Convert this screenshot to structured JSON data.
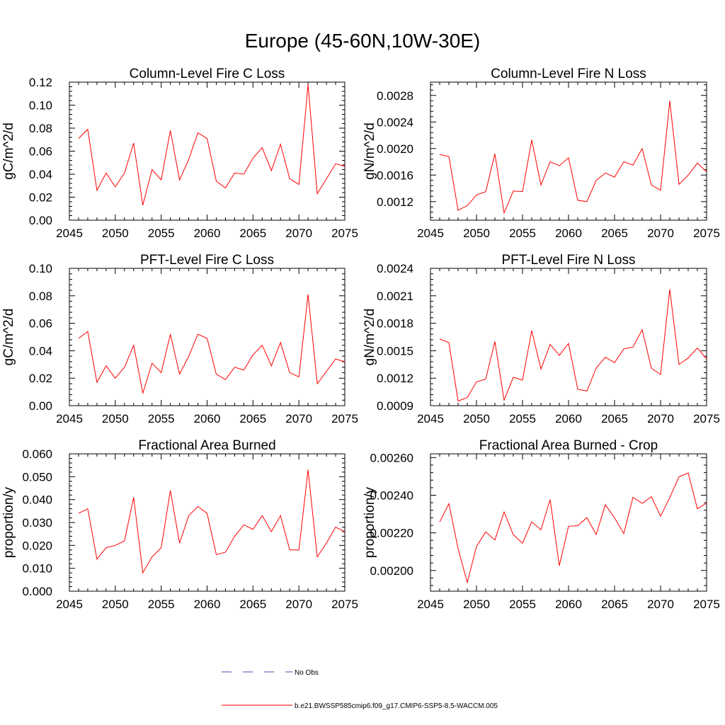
{
  "main_title": "Europe (45-60N,10W-30E)",
  "legend": {
    "obs_label": "No Obs",
    "model_label": "b.e21.BWSSP585cmip6.f09_g17.CMIP6-SSP5-8.5-WACCM.005",
    "obs_color": "#4a4ab0",
    "model_color": "#ff0000"
  },
  "chart_data": [
    {
      "type": "line",
      "title": "Column-Level Fire C Loss",
      "ylabel": "gC/m^2/d",
      "xlim": [
        2045,
        2075
      ],
      "ylim": [
        0,
        0.12
      ],
      "xticks": [
        "2045",
        "2050",
        "2055",
        "2060",
        "2065",
        "2070",
        "2075"
      ],
      "yticks": [
        "0.00",
        "0.02",
        "0.04",
        "0.06",
        "0.08",
        "0.10",
        "0.12"
      ],
      "series": [
        {
          "name": "b.e21.BWSSP585cmip6.f09_g17.CMIP6-SSP5-8.5-WACCM.005",
          "x": [
            2046,
            2047,
            2048,
            2049,
            2050,
            2051,
            2052,
            2053,
            2054,
            2055,
            2056,
            2057,
            2058,
            2059,
            2060,
            2061,
            2062,
            2063,
            2064,
            2065,
            2066,
            2067,
            2068,
            2069,
            2070,
            2071,
            2072,
            2073,
            2074,
            2075
          ],
          "values": [
            0.071,
            0.079,
            0.026,
            0.041,
            0.029,
            0.041,
            0.067,
            0.013,
            0.044,
            0.035,
            0.078,
            0.035,
            0.053,
            0.076,
            0.071,
            0.034,
            0.028,
            0.041,
            0.04,
            0.054,
            0.063,
            0.043,
            0.066,
            0.036,
            0.031,
            0.118,
            0.023,
            0.036,
            0.049,
            0.047
          ]
        }
      ]
    },
    {
      "type": "line",
      "title": "Column-Level Fire N Loss",
      "ylabel": "gN/m^2/d",
      "xlim": [
        2045,
        2075
      ],
      "ylim": [
        0.00092,
        0.003
      ],
      "xticks": [
        "2045",
        "2050",
        "2055",
        "2060",
        "2065",
        "2070",
        "2075"
      ],
      "yticks": [
        "0.0012",
        "0.0016",
        "0.0020",
        "0.0024",
        "0.0028"
      ],
      "series": [
        {
          "name": "b.e21.BWSSP585cmip6.f09_g17.CMIP6-SSP5-8.5-WACCM.005",
          "x": [
            2046,
            2047,
            2048,
            2049,
            2050,
            2051,
            2052,
            2053,
            2054,
            2055,
            2056,
            2057,
            2058,
            2059,
            2060,
            2061,
            2062,
            2063,
            2064,
            2065,
            2066,
            2067,
            2068,
            2069,
            2070,
            2071,
            2072,
            2073,
            2074,
            2075
          ],
          "values": [
            0.00191,
            0.00188,
            0.00107,
            0.00114,
            0.0013,
            0.00135,
            0.00192,
            0.00103,
            0.00136,
            0.00135,
            0.00213,
            0.00145,
            0.0018,
            0.00174,
            0.00186,
            0.00122,
            0.0012,
            0.00152,
            0.00163,
            0.00157,
            0.0018,
            0.00175,
            0.002,
            0.00145,
            0.00137,
            0.00272,
            0.00146,
            0.0016,
            0.00178,
            0.00165
          ]
        }
      ]
    },
    {
      "type": "line",
      "title": "PFT-Level Fire C Loss",
      "ylabel": "gC/m^2/d",
      "xlim": [
        2045,
        2075
      ],
      "ylim": [
        0,
        0.1
      ],
      "xticks": [
        "2045",
        "2050",
        "2055",
        "2060",
        "2065",
        "2070",
        "2075"
      ],
      "yticks": [
        "0.00",
        "0.02",
        "0.04",
        "0.06",
        "0.08",
        "0.10"
      ],
      "series": [
        {
          "name": "b.e21.BWSSP585cmip6.f09_g17.CMIP6-SSP5-8.5-WACCM.005",
          "x": [
            2046,
            2047,
            2048,
            2049,
            2050,
            2051,
            2052,
            2053,
            2054,
            2055,
            2056,
            2057,
            2058,
            2059,
            2060,
            2061,
            2062,
            2063,
            2064,
            2065,
            2066,
            2067,
            2068,
            2069,
            2070,
            2071,
            2072,
            2073,
            2074,
            2075
          ],
          "values": [
            0.049,
            0.054,
            0.017,
            0.029,
            0.02,
            0.028,
            0.044,
            0.009,
            0.031,
            0.024,
            0.052,
            0.023,
            0.036,
            0.052,
            0.049,
            0.023,
            0.019,
            0.028,
            0.026,
            0.037,
            0.044,
            0.029,
            0.046,
            0.024,
            0.021,
            0.081,
            0.016,
            0.025,
            0.034,
            0.032
          ]
        }
      ]
    },
    {
      "type": "line",
      "title": "PFT-Level Fire N Loss",
      "ylabel": "gN/m^2/d",
      "xlim": [
        2045,
        2075
      ],
      "ylim": [
        0.0009,
        0.0024
      ],
      "xticks": [
        "2045",
        "2050",
        "2055",
        "2060",
        "2065",
        "2070",
        "2075"
      ],
      "yticks": [
        "0.0009",
        "0.0012",
        "0.0015",
        "0.0018",
        "0.0021",
        "0.0024"
      ],
      "series": [
        {
          "name": "b.e21.BWSSP585cmip6.f09_g17.CMIP6-SSP5-8.5-WACCM.005",
          "x": [
            2046,
            2047,
            2048,
            2049,
            2050,
            2051,
            2052,
            2053,
            2054,
            2055,
            2056,
            2057,
            2058,
            2059,
            2060,
            2061,
            2062,
            2063,
            2064,
            2065,
            2066,
            2067,
            2068,
            2069,
            2070,
            2071,
            2072,
            2073,
            2074,
            2075
          ],
          "values": [
            0.00163,
            0.00159,
            0.00095,
            0.00099,
            0.00116,
            0.00119,
            0.0016,
            0.00096,
            0.00121,
            0.00118,
            0.00172,
            0.0013,
            0.00157,
            0.00145,
            0.00158,
            0.00108,
            0.00106,
            0.00131,
            0.00143,
            0.00137,
            0.00152,
            0.00154,
            0.00173,
            0.00131,
            0.00124,
            0.00217,
            0.00135,
            0.00142,
            0.00153,
            0.00141
          ]
        }
      ]
    },
    {
      "type": "line",
      "title": "Fractional Area Burned",
      "ylabel": "proportion/y",
      "xlim": [
        2045,
        2075
      ],
      "ylim": [
        0,
        0.06
      ],
      "xticks": [
        "2045",
        "2050",
        "2055",
        "2060",
        "2065",
        "2070",
        "2075"
      ],
      "yticks": [
        "0.000",
        "0.010",
        "0.020",
        "0.030",
        "0.040",
        "0.050",
        "0.060"
      ],
      "series": [
        {
          "name": "b.e21.BWSSP585cmip6.f09_g17.CMIP6-SSP5-8.5-WACCM.005",
          "x": [
            2046,
            2047,
            2048,
            2049,
            2050,
            2051,
            2052,
            2053,
            2054,
            2055,
            2056,
            2057,
            2058,
            2059,
            2060,
            2061,
            2062,
            2063,
            2064,
            2065,
            2066,
            2067,
            2068,
            2069,
            2070,
            2071,
            2072,
            2073,
            2074,
            2075
          ],
          "values": [
            0.034,
            0.036,
            0.014,
            0.019,
            0.02,
            0.022,
            0.041,
            0.008,
            0.015,
            0.019,
            0.044,
            0.021,
            0.033,
            0.037,
            0.034,
            0.016,
            0.017,
            0.024,
            0.029,
            0.027,
            0.033,
            0.026,
            0.033,
            0.018,
            0.018,
            0.053,
            0.015,
            0.021,
            0.028,
            0.026
          ]
        }
      ]
    },
    {
      "type": "line",
      "title": "Fractional Area Burned - Crop",
      "ylabel": "proportion/y",
      "xlim": [
        2045,
        2075
      ],
      "ylim": [
        0.00189,
        0.00262
      ],
      "xticks": [
        "2045",
        "2050",
        "2055",
        "2060",
        "2065",
        "2070",
        "2075"
      ],
      "yticks": [
        "0.00200",
        "0.00220",
        "0.00240",
        "0.00260"
      ],
      "series": [
        {
          "name": "b.e21.BWSSP585cmip6.f09_g17.CMIP6-SSP5-8.5-WACCM.005",
          "x": [
            2046,
            2047,
            2048,
            2049,
            2050,
            2051,
            2052,
            2053,
            2054,
            2055,
            2056,
            2057,
            2058,
            2059,
            2060,
            2061,
            2062,
            2063,
            2064,
            2065,
            2066,
            2067,
            2068,
            2069,
            2070,
            2071,
            2072,
            2073,
            2074,
            2075
          ],
          "values": [
            0.002258,
            0.002355,
            0.002117,
            0.001936,
            0.002128,
            0.002205,
            0.002162,
            0.002311,
            0.00219,
            0.002145,
            0.002259,
            0.002216,
            0.002377,
            0.002026,
            0.002235,
            0.002238,
            0.002281,
            0.002191,
            0.00235,
            0.00228,
            0.002196,
            0.002389,
            0.002357,
            0.002392,
            0.002289,
            0.002388,
            0.002498,
            0.002518,
            0.002328,
            0.002358
          ]
        }
      ]
    }
  ]
}
